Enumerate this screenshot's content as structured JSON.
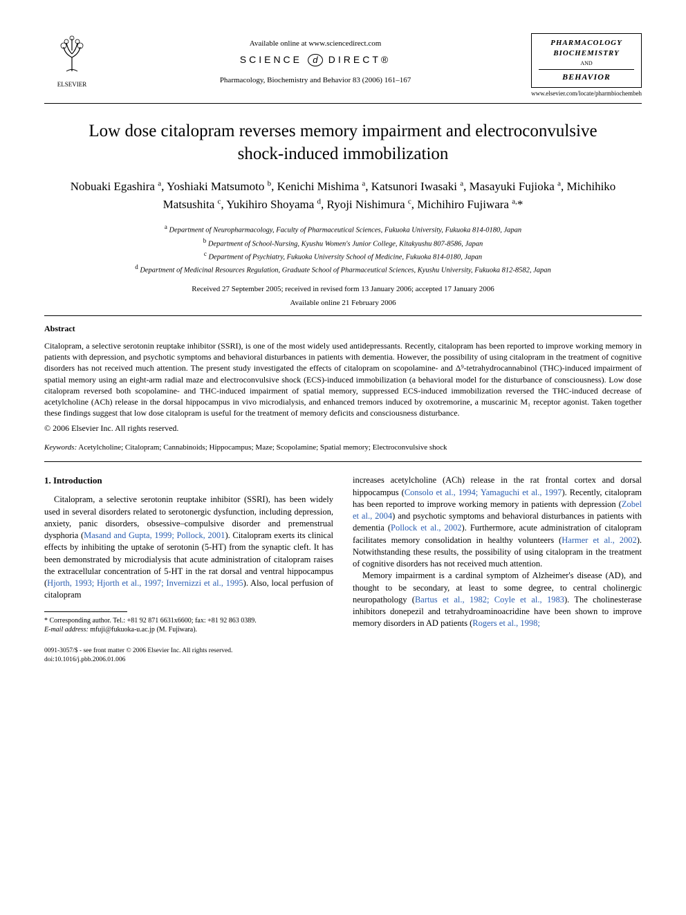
{
  "header": {
    "publisher": "ELSEVIER",
    "available_line": "Available online at www.sciencedirect.com",
    "sd_left": "SCIENCE",
    "sd_right": "DIRECT®",
    "journal_ref": "Pharmacology, Biochemistry and Behavior 83 (2006) 161–167",
    "badge_line1": "PHARMACOLOGY",
    "badge_line2": "BIOCHEMISTRY",
    "badge_and": "AND",
    "badge_line3": "BEHAVIOR",
    "journal_url": "www.elsevier.com/locate/pharmbiochembeh"
  },
  "title": "Low dose citalopram reverses memory impairment and electroconvulsive shock-induced immobilization",
  "authors_html": "Nobuaki Egashira <sup>a</sup>, Yoshiaki Matsumoto <sup>b</sup>, Kenichi Mishima <sup>a</sup>, Katsunori Iwasaki <sup>a</sup>, Masayuki Fujioka <sup>a</sup>, Michihiko Matsushita <sup>c</sup>, Yukihiro Shoyama <sup>d</sup>, Ryoji Nishimura <sup>c</sup>, Michihiro Fujiwara <sup>a,</sup>*",
  "affiliations": [
    {
      "sup": "a",
      "text": "Department of Neuropharmacology, Faculty of Pharmaceutical Sciences, Fukuoka University, Fukuoka 814-0180, Japan"
    },
    {
      "sup": "b",
      "text": "Department of School-Nursing, Kyushu Women's Junior College, Kitakyushu 807-8586, Japan"
    },
    {
      "sup": "c",
      "text": "Department of Psychiatry, Fukuoka University School of Medicine, Fukuoka 814-0180, Japan"
    },
    {
      "sup": "d",
      "text": "Department of Medicinal Resources Regulation, Graduate School of Pharmaceutical Sciences, Kyushu University, Fukuoka 812-8582, Japan"
    }
  ],
  "dates_line1": "Received 27 September 2005; received in revised form 13 January 2006; accepted 17 January 2006",
  "dates_line2": "Available online 21 February 2006",
  "abstract": {
    "heading": "Abstract",
    "body": "Citalopram, a selective serotonin reuptake inhibitor (SSRI), is one of the most widely used antidepressants. Recently, citalopram has been reported to improve working memory in patients with depression, and psychotic symptoms and behavioral disturbances in patients with dementia. However, the possibility of using citalopram in the treatment of cognitive disorders has not received much attention. The present study investigated the effects of citalopram on scopolamine- and Δ⁹-tetrahydrocannabinol (THC)-induced impairment of spatial memory using an eight-arm radial maze and electroconvulsive shock (ECS)-induced immobilization (a behavioral model for the disturbance of consciousness). Low dose citalopram reversed both scopolamine- and THC-induced impairment of spatial memory, suppressed ECS-induced immobilization reversed the THC-induced decrease of acetylcholine (ACh) release in the dorsal hippocampus in vivo microdialysis, and enhanced tremors induced by oxotremorine, a muscarinic M₁ receptor agonist. Taken together these findings suggest that low dose citalopram is useful for the treatment of memory deficits and consciousness disturbance.",
    "copyright": "© 2006 Elsevier Inc. All rights reserved."
  },
  "keywords": {
    "label": "Keywords:",
    "text": "Acetylcholine; Citalopram; Cannabinoids; Hippocampus; Maze; Scopolamine; Spatial memory; Electroconvulsive shock"
  },
  "intro": {
    "heading": "1. Introduction",
    "left_para": "Citalopram, a selective serotonin reuptake inhibitor (SSRI), has been widely used in several disorders related to serotonergic dysfunction, including depression, anxiety, panic disorders, obsessive–compulsive disorder and premenstrual dysphoria (",
    "left_link1": "Masand and Gupta, 1999; Pollock, 2001",
    "left_para2": "). Citalopram exerts its clinical effects by inhibiting the uptake of serotonin (5-HT) from the synaptic cleft. It has been demonstrated by microdialysis that acute administration of citalopram raises the extracellular concentration of 5-HT in the rat dorsal and ventral hippocampus (",
    "left_link2": "Hjorth, 1993; Hjorth et al., 1997; Invernizzi et al., 1995",
    "left_para3": "). Also, local perfusion of citalopram",
    "right_para1a": "increases acetylcholine (ACh) release in the rat frontal cortex and dorsal hippocampus (",
    "right_link1": "Consolo et al., 1994; Yamaguchi et al., 1997",
    "right_para1b": "). Recently, citalopram has been reported to improve working memory in patients with depression (",
    "right_link2": "Zobel et al., 2004",
    "right_para1c": ") and psychotic symptoms and behavioral disturbances in patients with dementia (",
    "right_link3": "Pollock et al., 2002",
    "right_para1d": "). Furthermore, acute administration of citalopram facilitates memory consolidation in healthy volunteers (",
    "right_link4": "Harmer et al., 2002",
    "right_para1e": "). Notwithstanding these results, the possibility of using citalopram in the treatment of cognitive disorders has not received much attention.",
    "right_para2a": "Memory impairment is a cardinal symptom of Alzheimer's disease (AD), and thought to be secondary, at least to some degree, to central cholinergic neuropathology (",
    "right_link5": "Bartus et al., 1982; Coyle et al., 1983",
    "right_para2b": "). The cholinesterase inhibitors donepezil and tetrahydroaminoacridine have been shown to improve memory disorders in AD patients (",
    "right_link6": "Rogers et al., 1998;"
  },
  "footnote": {
    "corr": "* Corresponding author. Tel.: +81 92 871 6631x6600; fax: +81 92 863 0389.",
    "email_label": "E-mail address:",
    "email": "mfuji@fukuoka-u.ac.jp",
    "email_who": "(M. Fujiwara)."
  },
  "footer": {
    "line1": "0091-3057/$ - see front matter © 2006 Elsevier Inc. All rights reserved.",
    "line2": "doi:10.1016/j.pbb.2006.01.006"
  },
  "colors": {
    "link": "#2a5db0",
    "text": "#000000",
    "background": "#ffffff"
  }
}
